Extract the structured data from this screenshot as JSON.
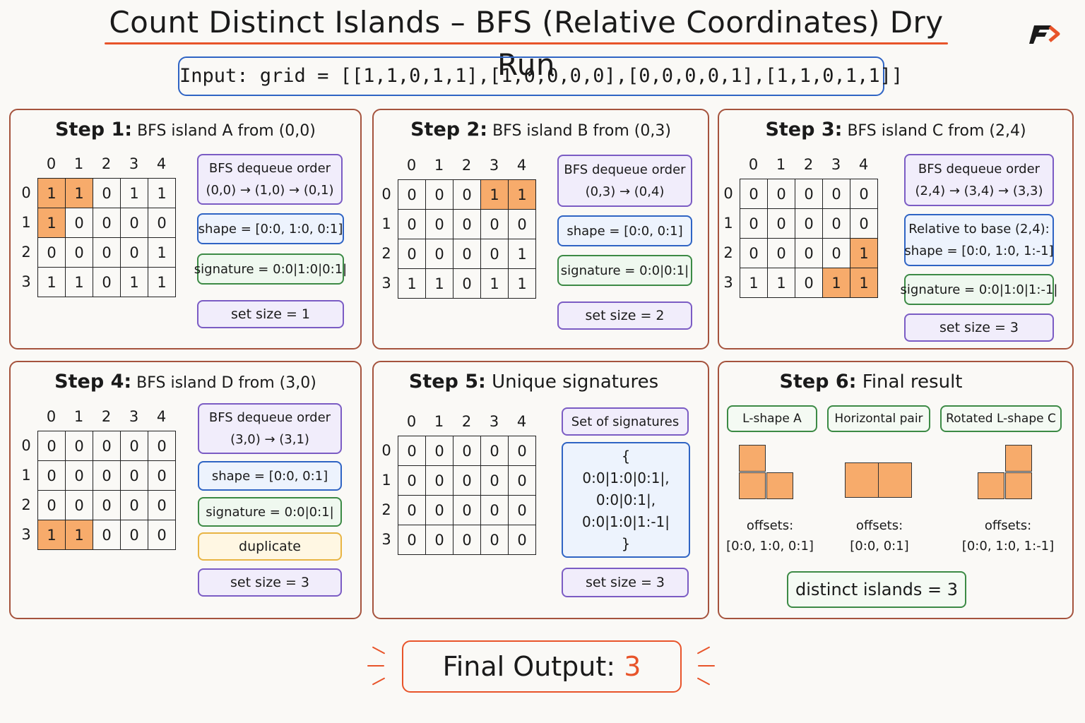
{
  "title": "Count Distinct Islands – BFS (Relative Coordinates) Dry Run",
  "input_label": "Input:  grid = [[1,1,0,1,1],[1,0,0,0,0],[0,0,0,0,1],[1,1,0,1,1]]",
  "col_headers": [
    "0",
    "1",
    "2",
    "3",
    "4"
  ],
  "row_headers": [
    "0",
    "1",
    "2",
    "3"
  ],
  "steps": [
    {
      "step": "Step 1:",
      "desc": "BFS island A from (0,0)",
      "grid": [
        [
          "1",
          "1",
          "0",
          "1",
          "1"
        ],
        [
          "1",
          "0",
          "0",
          "0",
          "0"
        ],
        [
          "0",
          "0",
          "0",
          "0",
          "1"
        ],
        [
          "1",
          "1",
          "0",
          "1",
          "1"
        ]
      ],
      "highlight": [
        [
          0,
          0
        ],
        [
          0,
          1
        ],
        [
          1,
          0
        ]
      ],
      "dequeue_title": "BFS dequeue order",
      "dequeue": "(0,0) → (1,0) → (0,1)",
      "shape": "shape = [0:0, 1:0, 0:1]",
      "signature": "signature = 0:0|1:0|0:1|",
      "set_size": "set size = 1"
    },
    {
      "step": "Step 2:",
      "desc": "BFS island B from (0,3)",
      "grid": [
        [
          "0",
          "0",
          "0",
          "1",
          "1"
        ],
        [
          "0",
          "0",
          "0",
          "0",
          "0"
        ],
        [
          "0",
          "0",
          "0",
          "0",
          "1"
        ],
        [
          "1",
          "1",
          "0",
          "1",
          "1"
        ]
      ],
      "highlight": [
        [
          0,
          3
        ],
        [
          0,
          4
        ]
      ],
      "dequeue_title": "BFS dequeue order",
      "dequeue": "(0,3) → (0,4)",
      "shape": "shape = [0:0, 0:1]",
      "signature": "signature = 0:0|0:1|",
      "set_size": "set size = 2"
    },
    {
      "step": "Step 3:",
      "desc": "BFS island C from (2,4)",
      "grid": [
        [
          "0",
          "0",
          "0",
          "0",
          "0"
        ],
        [
          "0",
          "0",
          "0",
          "0",
          "0"
        ],
        [
          "0",
          "0",
          "0",
          "0",
          "1"
        ],
        [
          "1",
          "1",
          "0",
          "1",
          "1"
        ]
      ],
      "highlight": [
        [
          2,
          4
        ],
        [
          3,
          3
        ],
        [
          3,
          4
        ]
      ],
      "dequeue_title": "BFS dequeue order",
      "dequeue": "(2,4) → (3,4) → (3,3)",
      "relative": "Relative to base (2,4):",
      "shape": "shape = [0:0, 1:0, 1:-1]",
      "signature": "signature = 0:0|1:0|1:-1|",
      "set_size": "set size = 3"
    },
    {
      "step": "Step 4:",
      "desc": "BFS island D from (3,0)",
      "grid": [
        [
          "0",
          "0",
          "0",
          "0",
          "0"
        ],
        [
          "0",
          "0",
          "0",
          "0",
          "0"
        ],
        [
          "0",
          "0",
          "0",
          "0",
          "0"
        ],
        [
          "1",
          "1",
          "0",
          "0",
          "0"
        ]
      ],
      "highlight": [
        [
          3,
          0
        ],
        [
          3,
          1
        ]
      ],
      "dequeue_title": "BFS dequeue order",
      "dequeue": "(3,0) → (3,1)",
      "shape": "shape = [0:0, 0:1]",
      "signature": "signature = 0:0|0:1|",
      "status": "duplicate",
      "set_size": "set size = 3"
    },
    {
      "step": "Step 5:",
      "desc": "Unique signatures",
      "grid": [
        [
          "0",
          "0",
          "0",
          "0",
          "0"
        ],
        [
          "0",
          "0",
          "0",
          "0",
          "0"
        ],
        [
          "0",
          "0",
          "0",
          "0",
          "0"
        ],
        [
          "0",
          "0",
          "0",
          "0",
          "0"
        ]
      ],
      "highlight": [],
      "set_title": "Set of signatures",
      "set_lines": [
        "{",
        "0:0|1:0|0:1|,",
        "0:0|0:1|,",
        "0:0|1:0|1:-1|",
        "}"
      ],
      "set_size": "set size = 3"
    },
    {
      "step": "Step 6:",
      "desc": "Final result",
      "shapes": [
        {
          "label": "L-shape A",
          "offsets_label": "offsets:",
          "offsets": "[0:0, 1:0, 0:1]"
        },
        {
          "label": "Horizontal pair",
          "offsets_label": "offsets:",
          "offsets": "[0:0, 0:1]"
        },
        {
          "label": "Rotated L-shape C",
          "offsets_label": "offsets:",
          "offsets": "[0:0, 1:0, 1:-1]"
        }
      ],
      "result": "distinct islands = 3"
    }
  ],
  "final": {
    "label": "Final Output:",
    "value": "3"
  },
  "colors": {
    "accent": "#e8542a",
    "highlight": "#f7ab6b",
    "panel_border": "#a5533d",
    "purple": "#7b5cc4",
    "blue": "#2f64c4",
    "green": "#3c8a45",
    "yellow": "#e8b443"
  }
}
